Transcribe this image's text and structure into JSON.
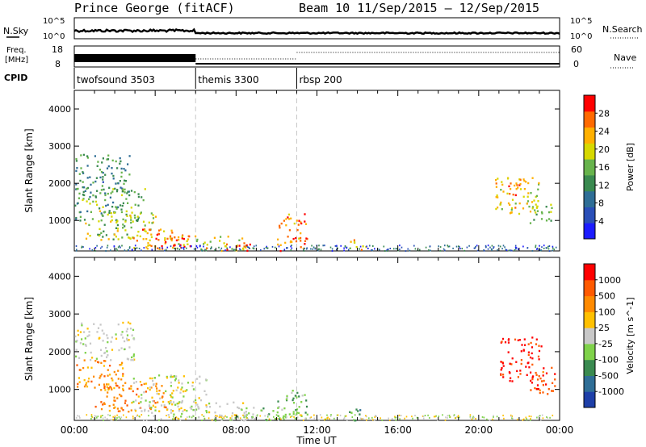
{
  "header": {
    "station": "Prince George (fitACF)",
    "beam_and_dates": "Beam 10  11/Sep/2015 – 12/Sep/2015"
  },
  "noise_panel": {
    "left_label": "N.Sky",
    "left_top": "10^5",
    "left_bottom": "10^0",
    "right_top": "10^5",
    "right_bottom": "10^0",
    "right_label": "N.Search"
  },
  "freq_panel": {
    "left_label_1": "Freq.",
    "left_label_2": "[MHz]",
    "left_top": "18",
    "left_bottom": "8",
    "right_top": "60",
    "right_bottom": "0",
    "right_label": "Nave"
  },
  "cpid_panel": {
    "label": "CPID",
    "modes": [
      {
        "name": "twofsound 3503",
        "start_hour": 0
      },
      {
        "name": "themis 3300",
        "start_hour": 6
      },
      {
        "name": "rbsp 200",
        "start_hour": 11
      }
    ]
  },
  "colors": {
    "power": [
      "#1c1cff",
      "#2a4fb8",
      "#2f6e96",
      "#3a8a50",
      "#67b34c",
      "#d7d800",
      "#ffb000",
      "#ff6a00",
      "#ff0000"
    ],
    "velocity": [
      "#ff0000",
      "#ff5a00",
      "#ff8a00",
      "#ffc000",
      "#c8c8c8",
      "#7fd24a",
      "#3a8a50",
      "#2f6e96",
      "#1e3fa8"
    ]
  },
  "chart_data": [
    {
      "type": "heatmap",
      "title": "",
      "xlabel": "",
      "ylabel": "Slant Range [km]",
      "xlim": [
        0,
        24
      ],
      "ylim": [
        180,
        4500
      ],
      "x_ticks": [
        "00:00",
        "04:00",
        "08:00",
        "12:00",
        "16:00",
        "20:00",
        "00:00"
      ],
      "y_ticks": [
        1000,
        2000,
        3000,
        4000
      ],
      "colorbar": {
        "label": "Power [dB]",
        "range": [
          0,
          32
        ],
        "ticks": [
          4,
          8,
          12,
          16,
          20,
          24,
          28
        ]
      },
      "regions": [
        {
          "t": [
            0,
            2.8
          ],
          "r": [
            1700,
            2800
          ],
          "value": 12
        },
        {
          "t": [
            0,
            3.5
          ],
          "r": [
            1000,
            1900
          ],
          "value": 14
        },
        {
          "t": [
            0.5,
            4.0
          ],
          "r": [
            500,
            1300
          ],
          "value": 18
        },
        {
          "t": [
            2.8,
            5.0
          ],
          "r": [
            250,
            800
          ],
          "value": 24
        },
        {
          "t": [
            4.0,
            5.8
          ],
          "r": [
            250,
            700
          ],
          "value": 30
        },
        {
          "t": [
            5.0,
            8.5
          ],
          "r": [
            200,
            600
          ],
          "value": 20
        },
        {
          "t": [
            7.5,
            8.8
          ],
          "r": [
            200,
            450
          ],
          "value": 28
        },
        {
          "t": [
            10.0,
            11.5
          ],
          "r": [
            200,
            1200
          ],
          "value": 26
        },
        {
          "t": [
            13.5,
            14.5
          ],
          "r": [
            200,
            500
          ],
          "value": 22
        },
        {
          "t": [
            20.8,
            23.0
          ],
          "r": [
            1200,
            2200
          ],
          "value": 20
        },
        {
          "t": [
            21.3,
            22.3
          ],
          "r": [
            1700,
            2200
          ],
          "value": 28
        },
        {
          "t": [
            22.5,
            23.6
          ],
          "r": [
            900,
            1500
          ],
          "value": 16
        }
      ]
    },
    {
      "type": "heatmap",
      "title": "",
      "xlabel": "Time UT",
      "ylabel": "Slant Range [km]",
      "xlim": [
        0,
        24
      ],
      "ylim": [
        180,
        4500
      ],
      "x_ticks": [
        "00:00",
        "04:00",
        "08:00",
        "12:00",
        "16:00",
        "20:00",
        "00:00"
      ],
      "y_ticks": [
        1000,
        2000,
        3000,
        4000
      ],
      "colorbar": {
        "label": "Velocity [m s^-1]",
        "ticks": [
          "1000",
          "500",
          "100",
          "25",
          "-25",
          "-100",
          "-500",
          "-1000"
        ]
      },
      "regions": [
        {
          "t": [
            0,
            3.0
          ],
          "r": [
            1800,
            2800
          ],
          "vel_class": 4
        },
        {
          "t": [
            0,
            2.5
          ],
          "r": [
            1000,
            1800
          ],
          "vel_class": 2
        },
        {
          "t": [
            1.0,
            4.5
          ],
          "r": [
            400,
            1200
          ],
          "vel_class": 2
        },
        {
          "t": [
            2.8,
            6.5
          ],
          "r": [
            400,
            1400
          ],
          "vel_class": 4
        },
        {
          "t": [
            4.5,
            8.5
          ],
          "r": [
            200,
            700
          ],
          "vel_class": 4
        },
        {
          "t": [
            8.0,
            11.5
          ],
          "r": [
            200,
            600
          ],
          "vel_class": 5
        },
        {
          "t": [
            10.0,
            11.5
          ],
          "r": [
            200,
            1000
          ],
          "vel_class": 5
        },
        {
          "t": [
            13.5,
            14.5
          ],
          "r": [
            200,
            500
          ],
          "vel_class": 6
        },
        {
          "t": [
            21.0,
            23.2
          ],
          "r": [
            1200,
            2400
          ],
          "vel_class": 0
        },
        {
          "t": [
            22.5,
            23.8
          ],
          "r": [
            900,
            1600
          ],
          "vel_class": 1
        }
      ]
    }
  ]
}
